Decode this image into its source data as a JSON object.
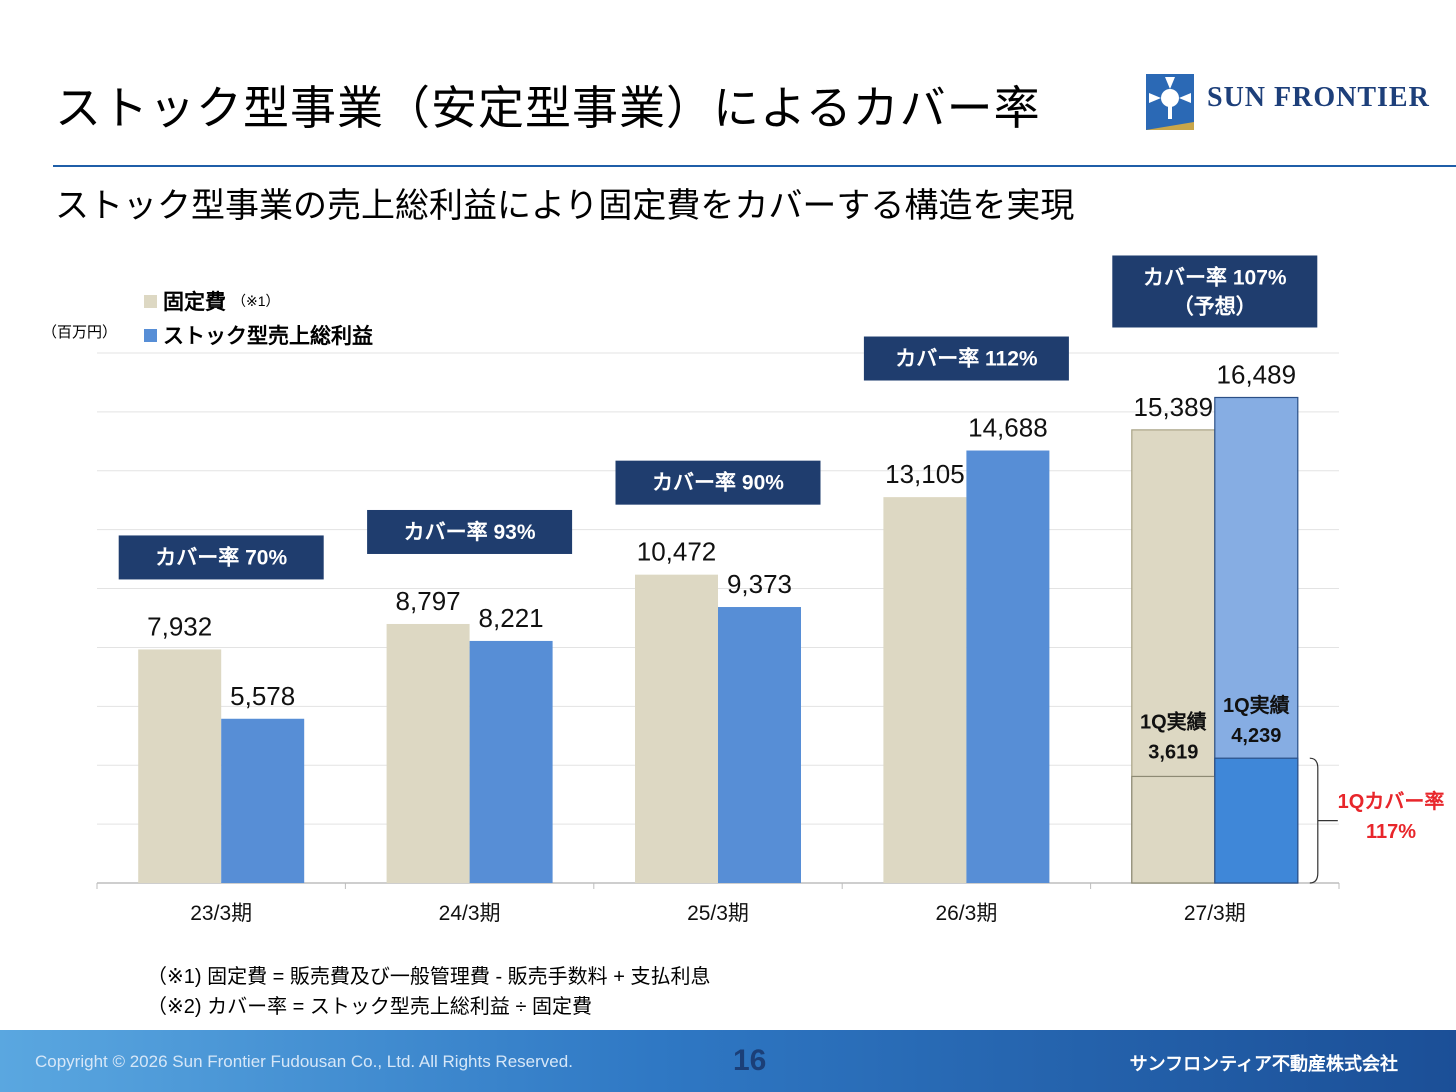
{
  "header": {
    "title": "ストック型事業（安定型事業）によるカバー率",
    "subtitle": "ストック型事業の売上総利益により固定費をカバーする構造を実現",
    "logo_text": "SUN FRONTIER"
  },
  "colors": {
    "fixed_cost": "#ddd8c3",
    "stock_profit": "#578ed6",
    "stock_forecast": "#86ade3",
    "stock_actual": "#3f87d8",
    "cover_box": "#1f3d6e",
    "highlight_red": "#e8262b",
    "rule": "#1f5ea8"
  },
  "chart_data": {
    "type": "bar",
    "unit_label": "（百万円）",
    "categories": [
      "23/3期",
      "24/3期",
      "25/3期",
      "26/3期",
      "27/3期"
    ],
    "series": [
      {
        "name": "固定費",
        "note": "（※1）",
        "values": [
          7932,
          8797,
          10472,
          13105,
          15389
        ]
      },
      {
        "name": "ストック型売上総利益",
        "values": [
          5578,
          8221,
          9373,
          14688,
          16489
        ]
      }
    ],
    "value_labels": {
      "fixed_cost": [
        "7,932",
        "8,797",
        "10,472",
        "13,105",
        "15,389"
      ],
      "stock_profit": [
        "5,578",
        "8,221",
        "9,373",
        "14,688",
        "16,489"
      ]
    },
    "cover_rates": [
      {
        "lines": [
          "カバー率 70%"
        ]
      },
      {
        "lines": [
          "カバー率 93%"
        ]
      },
      {
        "lines": [
          "カバー率 90%"
        ]
      },
      {
        "lines": [
          "カバー率 112%"
        ]
      },
      {
        "lines": [
          "カバー率 107%",
          "（予想）"
        ]
      }
    ],
    "q1_actual": {
      "fixed_cost": {
        "value": 3619,
        "lines": [
          "1Q実績",
          "3,619"
        ]
      },
      "stock_profit": {
        "value": 4239,
        "lines": [
          "1Q実績",
          "4,239"
        ]
      },
      "cover_rate_lines": [
        "1Qカバー率",
        "117%"
      ]
    },
    "forecast_category_index": 4,
    "ylim": [
      0,
      18000
    ],
    "grid": true
  },
  "notes": [
    "（※1) 固定費 = 販売費及び一般管理費 - 販売手数料 + 支払利息",
    "（※2) カバー率 = ストック型売上総利益 ÷ 固定費"
  ],
  "footer": {
    "copyright": "Copyright © 2026 Sun Frontier Fudousan Co., Ltd. All Rights Reserved.",
    "page": "16",
    "company": "サンフロンティア不動産株式会社"
  }
}
